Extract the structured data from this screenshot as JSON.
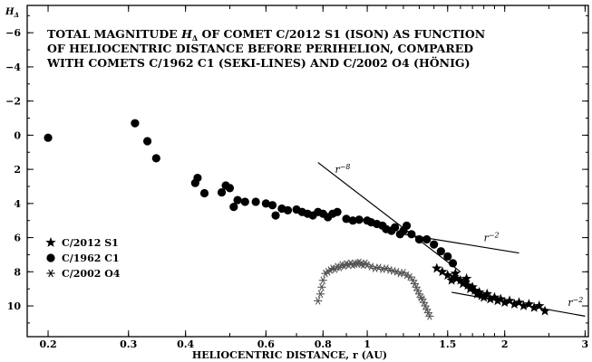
{
  "chart_data": {
    "type": "scatter",
    "title": [
      "TOTAL MAGNITUDE H_Δ OF COMET C/2012 S1 (ISON) AS FUNCTION",
      "OF HELIOCENTRIC DISTANCE BEFORE PERIHELION, COMPARED",
      "WITH COMETS C/1962 C1 (SEKI-LINES) AND C/2002 O4 (HÖNIG)"
    ],
    "xlabel": "HELIOCENTRIC DISTANCE, r (AU)",
    "ylabel": "H_Δ",
    "x_scale": "log",
    "xlim": [
      0.18,
      3.05
    ],
    "ylim": [
      11.8,
      -7.6
    ],
    "y_inverted": true,
    "x_ticks": [
      0.2,
      0.3,
      0.4,
      0.6,
      0.8,
      1,
      1.5,
      2,
      3
    ],
    "x_tick_labels": [
      "0.2",
      "0.3",
      "0.4",
      "0.6",
      "0.8",
      "1",
      "1.5",
      "2",
      "3"
    ],
    "y_ticks": [
      -6,
      -4,
      -2,
      0,
      2,
      4,
      6,
      8,
      10
    ],
    "y_tick_labels": [
      "−6",
      "−4",
      "−2",
      "0",
      "2",
      "4",
      "6",
      "8",
      "10"
    ],
    "legend": {
      "position": "left",
      "entries": [
        {
          "label": "C/2012 S1",
          "marker": "star"
        },
        {
          "label": "C/1962 C1",
          "marker": "circle"
        },
        {
          "label": "C/2002 O4",
          "marker": "asterisk"
        }
      ]
    },
    "series": [
      {
        "name": "C/2012 S1",
        "marker": "star",
        "color": "#000000",
        "points": [
          [
            1.42,
            7.8
          ],
          [
            1.46,
            8.0
          ],
          [
            1.5,
            8.2
          ],
          [
            1.53,
            8.5
          ],
          [
            1.55,
            8.3
          ],
          [
            1.57,
            8.4
          ],
          [
            1.6,
            8.5
          ],
          [
            1.62,
            8.7
          ],
          [
            1.64,
            8.6
          ],
          [
            1.66,
            8.8
          ],
          [
            1.68,
            9.0
          ],
          [
            1.7,
            8.9
          ],
          [
            1.72,
            9.1
          ],
          [
            1.74,
            9.3
          ],
          [
            1.76,
            9.2
          ],
          [
            1.78,
            9.4
          ],
          [
            1.8,
            9.5
          ],
          [
            1.83,
            9.3
          ],
          [
            1.86,
            9.6
          ],
          [
            1.9,
            9.5
          ],
          [
            1.93,
            9.7
          ],
          [
            1.96,
            9.6
          ],
          [
            2.0,
            9.8
          ],
          [
            2.05,
            9.7
          ],
          [
            2.1,
            9.9
          ],
          [
            2.15,
            9.8
          ],
          [
            2.2,
            10.0
          ],
          [
            2.26,
            9.9
          ],
          [
            2.32,
            10.1
          ],
          [
            2.38,
            10.0
          ],
          [
            2.45,
            10.3
          ],
          [
            1.56,
            8.1
          ],
          [
            1.65,
            8.4
          ]
        ]
      },
      {
        "name": "C/1962 C1",
        "marker": "circle",
        "color": "#000000",
        "points": [
          [
            0.2,
            0.15
          ],
          [
            0.31,
            -0.7
          ],
          [
            0.33,
            0.35
          ],
          [
            0.345,
            1.35
          ],
          [
            0.42,
            2.8
          ],
          [
            0.425,
            2.5
          ],
          [
            0.44,
            3.4
          ],
          [
            0.48,
            3.35
          ],
          [
            0.49,
            2.95
          ],
          [
            0.5,
            3.1
          ],
          [
            0.51,
            4.2
          ],
          [
            0.52,
            3.8
          ],
          [
            0.54,
            3.9
          ],
          [
            0.57,
            3.9
          ],
          [
            0.6,
            4.0
          ],
          [
            0.62,
            4.1
          ],
          [
            0.63,
            4.7
          ],
          [
            0.65,
            4.3
          ],
          [
            0.67,
            4.4
          ],
          [
            0.7,
            4.35
          ],
          [
            0.72,
            4.5
          ],
          [
            0.74,
            4.6
          ],
          [
            0.76,
            4.7
          ],
          [
            0.78,
            4.5
          ],
          [
            0.8,
            4.6
          ],
          [
            0.82,
            4.8
          ],
          [
            0.84,
            4.6
          ],
          [
            0.86,
            4.5
          ],
          [
            0.9,
            4.9
          ],
          [
            0.93,
            5.0
          ],
          [
            0.96,
            4.95
          ],
          [
            1.0,
            5.0
          ],
          [
            1.02,
            5.1
          ],
          [
            1.05,
            5.2
          ],
          [
            1.08,
            5.3
          ],
          [
            1.1,
            5.5
          ],
          [
            1.13,
            5.6
          ],
          [
            1.15,
            5.4
          ],
          [
            1.2,
            5.6
          ],
          [
            1.25,
            5.8
          ],
          [
            1.3,
            6.1
          ],
          [
            1.35,
            6.1
          ],
          [
            1.4,
            6.4
          ],
          [
            1.45,
            6.8
          ],
          [
            1.5,
            7.1
          ],
          [
            1.54,
            7.5
          ],
          [
            1.22,
            5.3
          ],
          [
            1.18,
            5.8
          ]
        ]
      },
      {
        "name": "C/2002 O4",
        "marker": "asterisk",
        "color": "#555555",
        "points": [
          [
            0.78,
            9.7
          ],
          [
            0.79,
            9.3
          ],
          [
            0.795,
            8.9
          ],
          [
            0.8,
            8.5
          ],
          [
            0.81,
            8.1
          ],
          [
            0.82,
            8.0
          ],
          [
            0.83,
            7.9
          ],
          [
            0.84,
            7.8
          ],
          [
            0.85,
            7.85
          ],
          [
            0.86,
            7.7
          ],
          [
            0.87,
            7.75
          ],
          [
            0.88,
            7.6
          ],
          [
            0.89,
            7.65
          ],
          [
            0.9,
            7.55
          ],
          [
            0.91,
            7.6
          ],
          [
            0.92,
            7.5
          ],
          [
            0.93,
            7.6
          ],
          [
            0.94,
            7.55
          ],
          [
            0.95,
            7.5
          ],
          [
            0.96,
            7.45
          ],
          [
            0.97,
            7.55
          ],
          [
            0.98,
            7.6
          ],
          [
            0.99,
            7.5
          ],
          [
            1.0,
            7.6
          ],
          [
            1.02,
            7.7
          ],
          [
            1.04,
            7.8
          ],
          [
            1.06,
            7.75
          ],
          [
            1.08,
            7.85
          ],
          [
            1.1,
            7.8
          ],
          [
            1.12,
            7.9
          ],
          [
            1.14,
            7.95
          ],
          [
            1.16,
            8.0
          ],
          [
            1.18,
            8.1
          ],
          [
            1.2,
            8.05
          ],
          [
            1.22,
            8.2
          ],
          [
            1.24,
            8.3
          ],
          [
            1.26,
            8.5
          ],
          [
            1.27,
            8.7
          ],
          [
            1.28,
            8.9
          ],
          [
            1.29,
            9.1
          ],
          [
            1.3,
            9.3
          ],
          [
            1.31,
            9.5
          ],
          [
            1.32,
            9.6
          ],
          [
            1.33,
            9.8
          ],
          [
            1.34,
            10.0
          ],
          [
            1.35,
            10.2
          ],
          [
            1.36,
            10.4
          ],
          [
            1.37,
            10.6
          ]
        ]
      }
    ],
    "reference_lines": [
      {
        "label": "r^−8",
        "x": [
          0.78,
          1.6
        ],
        "y": [
          1.6,
          8.0
        ]
      },
      {
        "label": "r^−2",
        "x": [
          1.2,
          2.15
        ],
        "y": [
          5.8,
          6.9
        ]
      },
      {
        "label": "r^−2",
        "x": [
          1.53,
          3.0
        ],
        "y": [
          9.2,
          10.6
        ]
      }
    ],
    "annotations": [
      {
        "text": "r^−8",
        "x": 0.85,
        "y": 2.2
      },
      {
        "text": "r^−2",
        "x": 1.8,
        "y": 6.2
      },
      {
        "text": "r^−2",
        "x": 2.75,
        "y": 10.0
      }
    ]
  }
}
